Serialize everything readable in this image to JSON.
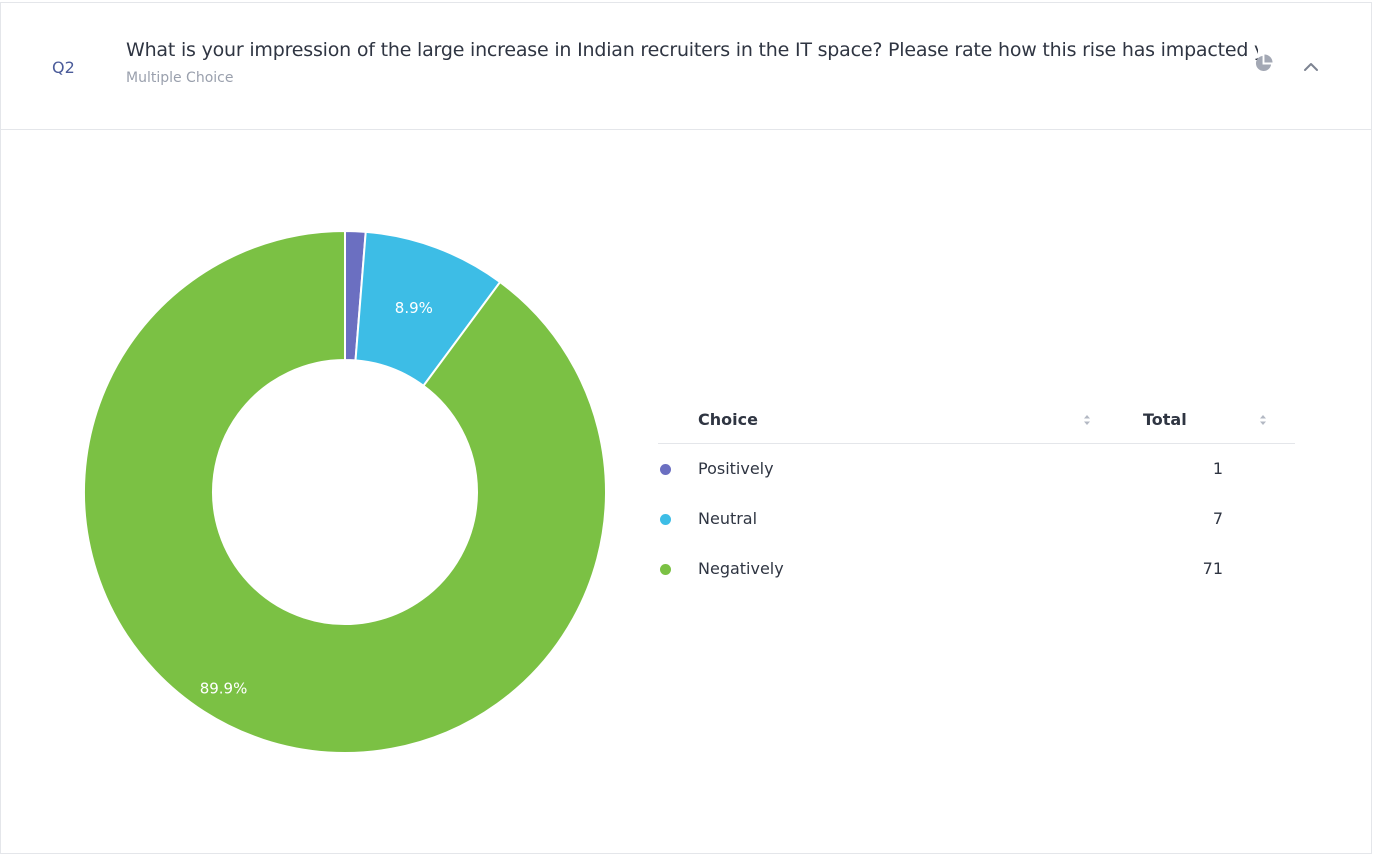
{
  "question": {
    "number": "Q2",
    "title": "What is your impression of the large increase in Indian recruiters in the IT space? Please rate how this rise has impacted you",
    "type": "Multiple Choice"
  },
  "table": {
    "col_choice": "Choice",
    "col_total": "Total",
    "rows": [
      {
        "label": "Positively",
        "total": "1",
        "color": "#6b6fc1"
      },
      {
        "label": "Neutral",
        "total": "7",
        "color": "#3dbde6"
      },
      {
        "label": "Negatively",
        "total": "71",
        "color": "#7bc144"
      }
    ]
  },
  "chart_data": {
    "type": "pie",
    "variant": "donut",
    "categories": [
      "Positively",
      "Neutral",
      "Negatively"
    ],
    "values": [
      1,
      7,
      71
    ],
    "colors": [
      "#6b6fc1",
      "#3dbde6",
      "#7bc144"
    ],
    "data_labels": [
      "",
      "8.9%",
      "89.9%"
    ]
  }
}
